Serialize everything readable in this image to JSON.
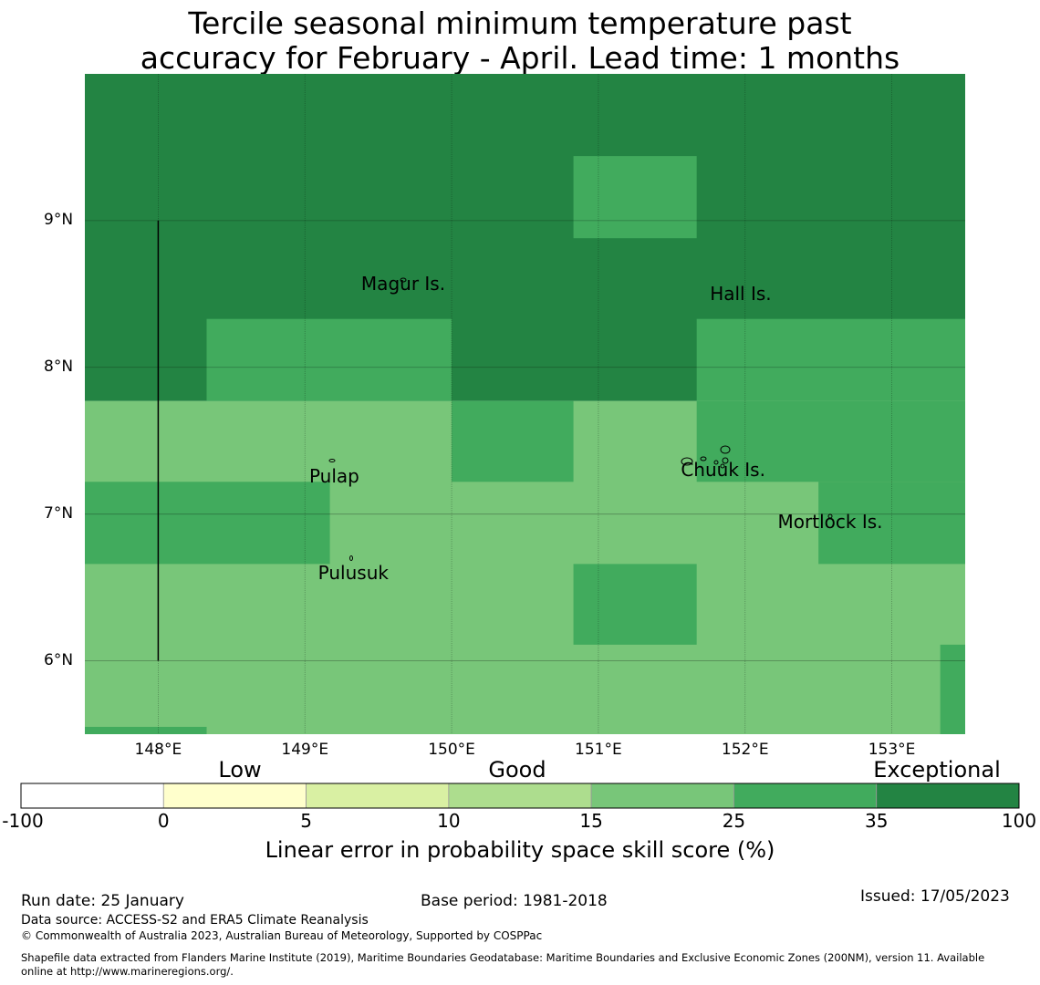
{
  "title": {
    "line1": "Tercile seasonal minimum temperature past",
    "line2": "accuracy for February - April. Lead time: 1 months"
  },
  "map": {
    "lat_range": [
      5.5,
      10.0
    ],
    "lon_range": [
      147.5,
      153.5
    ],
    "lat_ticks": [
      {
        "value": 9,
        "label": "9°N"
      },
      {
        "value": 8,
        "label": "8°N"
      },
      {
        "value": 7,
        "label": "7°N"
      },
      {
        "value": 6,
        "label": "6°N"
      }
    ],
    "lon_ticks": [
      {
        "value": 148,
        "label": "148°E"
      },
      {
        "value": 149,
        "label": "149°E"
      },
      {
        "value": 150,
        "label": "150°E"
      },
      {
        "value": 151,
        "label": "151°E"
      },
      {
        "value": 152,
        "label": "152°E"
      },
      {
        "value": 153,
        "label": "153°E"
      }
    ],
    "cells": [
      {
        "lon": [
          147.5,
          153.5
        ],
        "lat": [
          7.77,
          10.0
        ],
        "category": 6
      },
      {
        "lon": [
          150.83,
          151.67
        ],
        "lat": [
          8.88,
          9.44
        ],
        "category": 5
      },
      {
        "lon": [
          148.33,
          150.0
        ],
        "lat": [
          7.77,
          8.33
        ],
        "category": 5
      },
      {
        "lon": [
          151.67,
          153.5
        ],
        "lat": [
          7.77,
          8.33
        ],
        "category": 5
      },
      {
        "lon": [
          147.5,
          153.5
        ],
        "lat": [
          5.5,
          7.77
        ],
        "category": 4
      },
      {
        "lon": [
          150.0,
          150.83
        ],
        "lat": [
          7.22,
          7.77
        ],
        "category": 5
      },
      {
        "lon": [
          151.67,
          153.5
        ],
        "lat": [
          7.22,
          7.77
        ],
        "category": 5
      },
      {
        "lon": [
          147.5,
          149.17
        ],
        "lat": [
          6.66,
          7.22
        ],
        "category": 5
      },
      {
        "lon": [
          152.5,
          153.5
        ],
        "lat": [
          6.66,
          7.22
        ],
        "category": 5
      },
      {
        "lon": [
          150.83,
          151.67
        ],
        "lat": [
          6.11,
          6.66
        ],
        "category": 5
      },
      {
        "lon": [
          153.33,
          153.5
        ],
        "lat": [
          5.5,
          6.11
        ],
        "category": 5
      },
      {
        "lon": [
          147.5,
          148.33
        ],
        "lat": [
          5.5,
          5.55
        ],
        "category": 5
      }
    ],
    "boundary_line": {
      "lon": 148.0,
      "lat": [
        6.0,
        9.0
      ]
    },
    "places": [
      {
        "name": "Magur Is.",
        "lon": 149.67,
        "lat": 8.57
      },
      {
        "name": "Hall Is.",
        "lon": 151.97,
        "lat": 8.5
      },
      {
        "name": "Pulap",
        "lon": 149.2,
        "lat": 7.26
      },
      {
        "name": "Chuuk Is.",
        "lon": 151.85,
        "lat": 7.3
      },
      {
        "name": "Mortlock Is.",
        "lon": 152.58,
        "lat": 6.95
      },
      {
        "name": "Pulusuk",
        "lon": 149.33,
        "lat": 6.6
      }
    ]
  },
  "legend": {
    "colors": [
      "#ffffff",
      "#ffffcc",
      "#d9f0a3",
      "#addd8e",
      "#78c679",
      "#41ab5d",
      "#238443"
    ],
    "tick_labels": [
      "-100",
      "0",
      "5",
      "10",
      "15",
      "25",
      "35",
      "100"
    ],
    "categories": [
      "Low",
      "Good",
      "Exceptional"
    ],
    "label": "Linear error in probability space skill score (%)"
  },
  "footer": {
    "run_date": "Run date: 25 January",
    "base_period": "Base period: 1981-2018",
    "issued": "Issued: 17/05/2023",
    "data_source": "Data source: ACCESS-S2 and ERA5 Climate Reanalysis",
    "copyright": "© Commonwealth of Australia 2023, Australian Bureau of Meteorology, Supported by COSPPac",
    "shapefile_line1": "Shapefile data extracted from Flanders Marine Institute (2019), Maritime Boundaries Geodatabase: Maritime Boundaries and Exclusive Economic Zones (200NM), version 11. Available",
    "shapefile_line2": "online at http://www.marineregions.org/."
  }
}
